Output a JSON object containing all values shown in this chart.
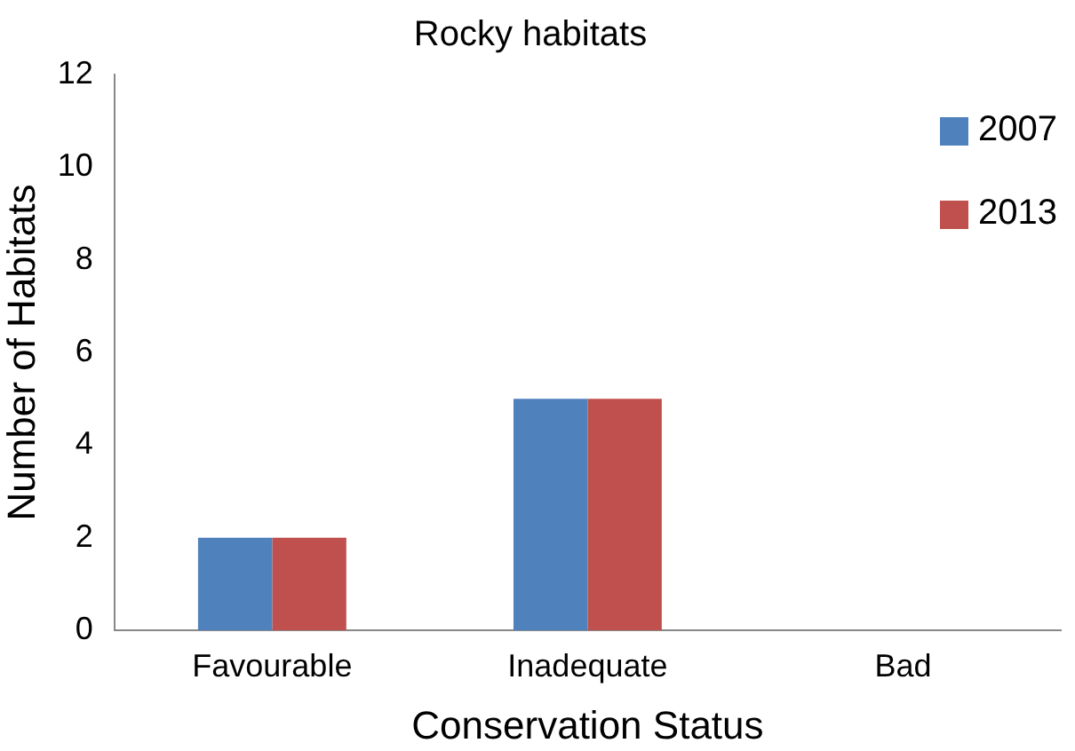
{
  "chart_data": {
    "type": "bar",
    "title": "Rocky habitats",
    "xlabel": "Conservation Status",
    "ylabel": "Number of Habitats",
    "categories": [
      "Favourable",
      "Inadequate",
      "Bad"
    ],
    "series": [
      {
        "name": "2007",
        "color": "#4f81bd",
        "values": [
          2,
          5,
          0
        ]
      },
      {
        "name": "2013",
        "color": "#c0504d",
        "values": [
          2,
          5,
          0
        ]
      }
    ],
    "ylim": [
      0,
      12
    ],
    "yticks": [
      0,
      2,
      4,
      6,
      8,
      10,
      12
    ],
    "legend": "top right"
  }
}
